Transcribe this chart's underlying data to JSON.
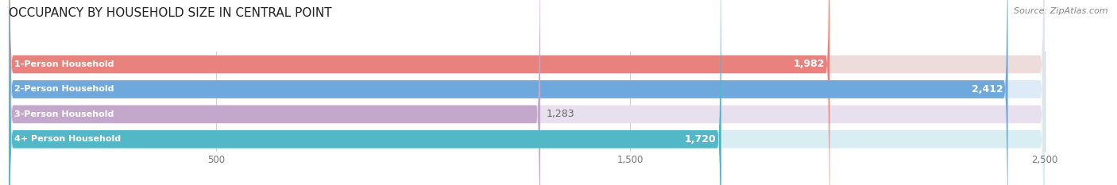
{
  "title": "OCCUPANCY BY HOUSEHOLD SIZE IN CENTRAL POINT",
  "source": "Source: ZipAtlas.com",
  "categories": [
    "1-Person Household",
    "2-Person Household",
    "3-Person Household",
    "4+ Person Household"
  ],
  "values": [
    1982,
    2412,
    1283,
    1720
  ],
  "bar_colors": [
    "#e8827c",
    "#6fa8dc",
    "#c3a8cb",
    "#52b8c8"
  ],
  "bg_colors": [
    "#eedcdb",
    "#ddeaf7",
    "#e8e0ee",
    "#d8eef2"
  ],
  "value_label_colors": [
    "white",
    "white",
    "#666666",
    "white"
  ],
  "value_label_inside": [
    true,
    true,
    false,
    true
  ],
  "xlim_max": 2600,
  "display_max": 2500,
  "xticks": [
    500,
    1500,
    2500
  ],
  "title_fontsize": 11,
  "source_fontsize": 8,
  "bar_label_fontsize": 9,
  "category_fontsize": 8
}
